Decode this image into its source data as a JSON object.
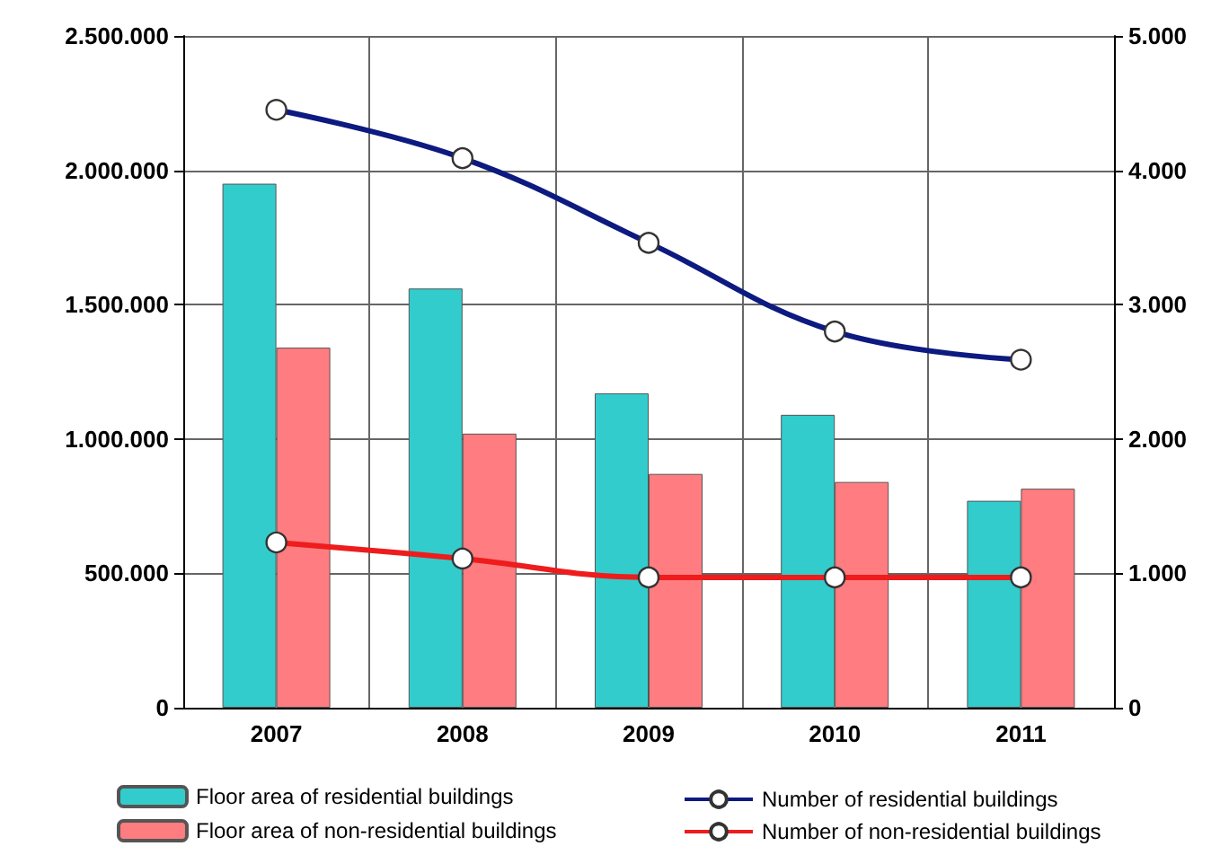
{
  "chart_data": {
    "type": "bar",
    "categories": [
      "2007",
      "2008",
      "2009",
      "2010",
      "2011"
    ],
    "series": [
      {
        "name": "Floor area of residential buildings",
        "color": "#33cccc",
        "values": [
          1950000,
          1560000,
          1170000,
          1090000,
          770000
        ]
      },
      {
        "name": "Floor area of non-residential buildings",
        "color": "#ff7c80",
        "values": [
          1340000,
          1020000,
          870000,
          840000,
          815000
        ]
      },
      {
        "name": "Number of residential buildings",
        "color": "#0d1a80",
        "type": "line",
        "axis": "y2",
        "values": [
          4450,
          4090,
          3460,
          2800,
          2590
        ]
      },
      {
        "name": "Number of non-residential buildings",
        "color": "#ee1c1c",
        "type": "line",
        "axis": "y2",
        "values": [
          1230,
          1110,
          970,
          970,
          970
        ]
      }
    ],
    "ylim": [
      0,
      2500000
    ],
    "yticks": [
      {
        "value": 0,
        "label": "0"
      },
      {
        "value": 500000,
        "label": "500.000"
      },
      {
        "value": 1000000,
        "label": "1.000.000"
      },
      {
        "value": 1500000,
        "label": "1.500.000"
      },
      {
        "value": 2000000,
        "label": "2.000.000"
      },
      {
        "value": 2500000,
        "label": "2.500.000"
      }
    ],
    "y2lim": [
      0,
      5000
    ],
    "y2ticks": [
      {
        "value": 0,
        "label": "0"
      },
      {
        "value": 1000,
        "label": "1.000"
      },
      {
        "value": 2000,
        "label": "2.000"
      },
      {
        "value": 3000,
        "label": "3.000"
      },
      {
        "value": 4000,
        "label": "4.000"
      },
      {
        "value": 5000,
        "label": "5.000"
      }
    ],
    "grid": true,
    "legend": "bottom",
    "marker": "circle",
    "line_style": "solid"
  }
}
